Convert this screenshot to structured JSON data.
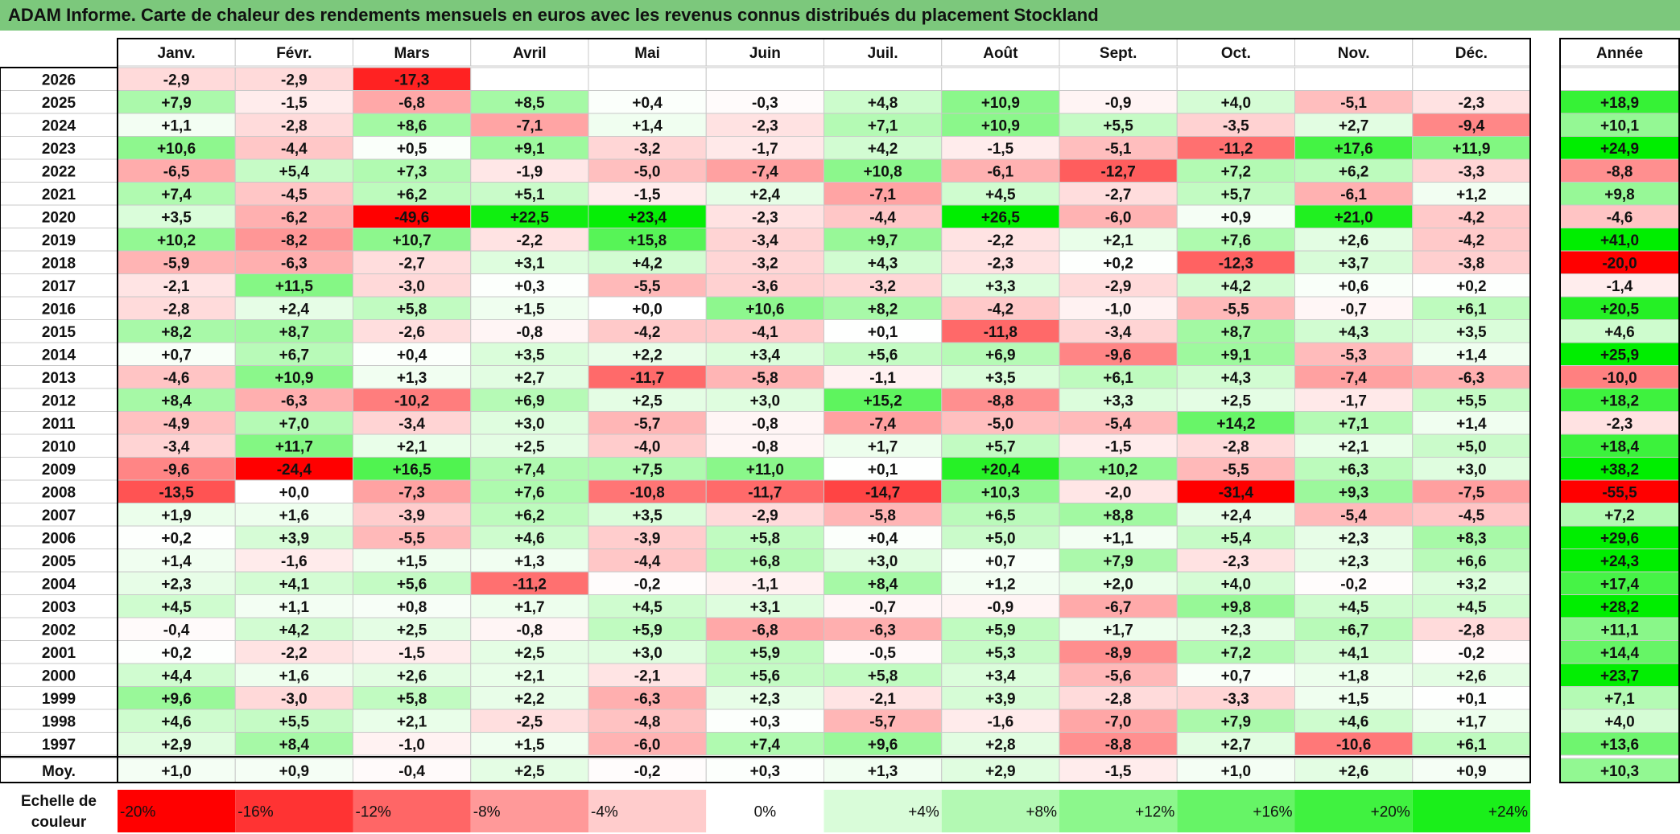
{
  "title": "ADAM Informe. Carte de chaleur des rendements mensuels en euros avec les revenus connus distribués du placement Stockland",
  "chart_data": {
    "type": "heatmap",
    "title": "ADAM Informe. Carte de chaleur des rendements mensuels en euros avec les revenus connus distribués du placement Stockland",
    "months": [
      "Janv.",
      "Févr.",
      "Mars",
      "Avril",
      "Mai",
      "Juin",
      "Juil.",
      "Août",
      "Sept.",
      "Oct.",
      "Nov.",
      "Déc."
    ],
    "annual_label": "Année",
    "rows": [
      {
        "year": "2026",
        "values": [
          "-2,9",
          "-2,9",
          "-17,3",
          "",
          "",
          "",
          "",
          "",
          "",
          "",
          "",
          ""
        ],
        "annual": ""
      },
      {
        "year": "2025",
        "values": [
          "+7,9",
          "-1,5",
          "-6,8",
          "+8,5",
          "+0,4",
          "-0,3",
          "+4,8",
          "+10,9",
          "-0,9",
          "+4,0",
          "-5,1",
          "-2,3"
        ],
        "annual": "+18,9"
      },
      {
        "year": "2024",
        "values": [
          "+1,1",
          "-2,8",
          "+8,6",
          "-7,1",
          "+1,4",
          "-2,3",
          "+7,1",
          "+10,9",
          "+5,5",
          "-3,5",
          "+2,7",
          "-9,4"
        ],
        "annual": "+10,1"
      },
      {
        "year": "2023",
        "values": [
          "+10,6",
          "-4,4",
          "+0,5",
          "+9,1",
          "-3,2",
          "-1,7",
          "+4,2",
          "-1,5",
          "-5,1",
          "-11,2",
          "+17,6",
          "+11,9"
        ],
        "annual": "+24,9"
      },
      {
        "year": "2022",
        "values": [
          "-6,5",
          "+5,4",
          "+7,3",
          "-1,9",
          "-5,0",
          "-7,4",
          "+10,8",
          "-6,1",
          "-12,7",
          "+7,2",
          "+6,2",
          "-3,3"
        ],
        "annual": "-8,8"
      },
      {
        "year": "2021",
        "values": [
          "+7,4",
          "-4,5",
          "+6,2",
          "+5,1",
          "-1,5",
          "+2,4",
          "-7,1",
          "+4,5",
          "-2,7",
          "+5,7",
          "-6,1",
          "+1,2"
        ],
        "annual": "+9,8"
      },
      {
        "year": "2020",
        "values": [
          "+3,5",
          "-6,2",
          "-49,6",
          "+22,5",
          "+23,4",
          "-2,3",
          "-4,4",
          "+26,5",
          "-6,0",
          "+0,9",
          "+21,0",
          "-4,2"
        ],
        "annual": "-4,6"
      },
      {
        "year": "2019",
        "values": [
          "+10,2",
          "-8,2",
          "+10,7",
          "-2,2",
          "+15,8",
          "-3,4",
          "+9,7",
          "-2,2",
          "+2,1",
          "+7,6",
          "+2,6",
          "-4,2"
        ],
        "annual": "+41,0"
      },
      {
        "year": "2018",
        "values": [
          "-5,9",
          "-6,3",
          "-2,7",
          "+3,1",
          "+4,2",
          "-3,2",
          "+4,3",
          "-2,3",
          "+0,2",
          "-12,3",
          "+3,7",
          "-3,8"
        ],
        "annual": "-20,0"
      },
      {
        "year": "2017",
        "values": [
          "-2,1",
          "+11,5",
          "-3,0",
          "+0,3",
          "-5,5",
          "-3,6",
          "-3,2",
          "+3,3",
          "-2,9",
          "+4,2",
          "+0,6",
          "+0,2"
        ],
        "annual": "-1,4"
      },
      {
        "year": "2016",
        "values": [
          "-2,8",
          "+2,4",
          "+5,8",
          "+1,5",
          "+0,0",
          "+10,6",
          "+8,2",
          "-4,2",
          "-1,0",
          "-5,5",
          "-0,7",
          "+6,1"
        ],
        "annual": "+20,5"
      },
      {
        "year": "2015",
        "values": [
          "+8,2",
          "+8,7",
          "-2,6",
          "-0,8",
          "-4,2",
          "-4,1",
          "+0,1",
          "-11,8",
          "-3,4",
          "+8,7",
          "+4,3",
          "+3,5"
        ],
        "annual": "+4,6"
      },
      {
        "year": "2014",
        "values": [
          "+0,7",
          "+6,7",
          "+0,4",
          "+3,5",
          "+2,2",
          "+3,4",
          "+5,6",
          "+6,9",
          "-9,6",
          "+9,1",
          "-5,3",
          "+1,4"
        ],
        "annual": "+25,9"
      },
      {
        "year": "2013",
        "values": [
          "-4,6",
          "+10,9",
          "+1,3",
          "+2,7",
          "-11,7",
          "-5,8",
          "-1,1",
          "+3,5",
          "+6,1",
          "+4,3",
          "-7,4",
          "-6,3"
        ],
        "annual": "-10,0"
      },
      {
        "year": "2012",
        "values": [
          "+8,4",
          "-6,3",
          "-10,2",
          "+6,9",
          "+2,5",
          "+3,0",
          "+15,2",
          "-8,8",
          "+3,3",
          "+2,5",
          "-1,7",
          "+5,5"
        ],
        "annual": "+18,2"
      },
      {
        "year": "2011",
        "values": [
          "-4,9",
          "+7,0",
          "-3,4",
          "+3,0",
          "-5,7",
          "-0,8",
          "-7,4",
          "-5,0",
          "-5,4",
          "+14,2",
          "+7,1",
          "+1,4"
        ],
        "annual": "-2,3"
      },
      {
        "year": "2010",
        "values": [
          "-3,4",
          "+11,7",
          "+2,1",
          "+2,5",
          "-4,0",
          "-0,8",
          "+1,7",
          "+5,7",
          "-1,5",
          "-2,8",
          "+2,1",
          "+5,0"
        ],
        "annual": "+18,4"
      },
      {
        "year": "2009",
        "values": [
          "-9,6",
          "-24,4",
          "+16,5",
          "+7,4",
          "+7,5",
          "+11,0",
          "+0,1",
          "+20,4",
          "+10,2",
          "-5,5",
          "+6,3",
          "+3,0"
        ],
        "annual": "+38,2"
      },
      {
        "year": "2008",
        "values": [
          "-13,5",
          "+0,0",
          "-7,3",
          "+7,6",
          "-10,8",
          "-11,7",
          "-14,7",
          "+10,3",
          "-2,0",
          "-31,4",
          "+9,3",
          "-7,5"
        ],
        "annual": "-55,5"
      },
      {
        "year": "2007",
        "values": [
          "+1,9",
          "+1,6",
          "-3,9",
          "+6,2",
          "+3,5",
          "-2,9",
          "-5,8",
          "+6,5",
          "+8,8",
          "+2,4",
          "-5,4",
          "-4,5"
        ],
        "annual": "+7,2"
      },
      {
        "year": "2006",
        "values": [
          "+0,2",
          "+3,9",
          "-5,5",
          "+4,6",
          "-3,9",
          "+5,8",
          "+0,4",
          "+5,0",
          "+1,1",
          "+5,4",
          "+2,3",
          "+8,3"
        ],
        "annual": "+29,6"
      },
      {
        "year": "2005",
        "values": [
          "+1,4",
          "-1,6",
          "+1,5",
          "+1,3",
          "-4,4",
          "+6,8",
          "+3,0",
          "+0,7",
          "+7,9",
          "-2,3",
          "+2,3",
          "+6,6"
        ],
        "annual": "+24,3"
      },
      {
        "year": "2004",
        "values": [
          "+2,3",
          "+4,1",
          "+5,6",
          "-11,2",
          "-0,2",
          "-1,1",
          "+8,4",
          "+1,2",
          "+2,0",
          "+4,0",
          "-0,2",
          "+3,2"
        ],
        "annual": "+17,4"
      },
      {
        "year": "2003",
        "values": [
          "+4,5",
          "+1,1",
          "+0,8",
          "+1,7",
          "+4,5",
          "+3,1",
          "-0,7",
          "-0,9",
          "-6,7",
          "+9,8",
          "+4,5",
          "+4,5"
        ],
        "annual": "+28,2"
      },
      {
        "year": "2002",
        "values": [
          "-0,4",
          "+4,2",
          "+2,5",
          "-0,8",
          "+5,9",
          "-6,8",
          "-6,3",
          "+5,9",
          "+1,7",
          "+2,3",
          "+6,7",
          "-2,8"
        ],
        "annual": "+11,1"
      },
      {
        "year": "2001",
        "values": [
          "+0,2",
          "-2,2",
          "-1,5",
          "+2,5",
          "+3,0",
          "+5,9",
          "-0,5",
          "+5,3",
          "-8,9",
          "+7,2",
          "+4,1",
          "-0,2"
        ],
        "annual": "+14,4"
      },
      {
        "year": "2000",
        "values": [
          "+4,4",
          "+1,6",
          "+2,6",
          "+2,1",
          "-2,1",
          "+5,6",
          "+5,8",
          "+3,4",
          "-5,6",
          "+0,7",
          "+1,8",
          "+2,6"
        ],
        "annual": "+23,7"
      },
      {
        "year": "1999",
        "values": [
          "+9,6",
          "-3,0",
          "+5,8",
          "+2,2",
          "-6,3",
          "+2,3",
          "-2,1",
          "+3,9",
          "-2,8",
          "-3,3",
          "+1,5",
          "+0,1"
        ],
        "annual": "+7,1"
      },
      {
        "year": "1998",
        "values": [
          "+4,6",
          "+5,5",
          "+2,1",
          "-2,5",
          "-4,8",
          "+0,3",
          "-5,7",
          "-1,6",
          "-7,0",
          "+7,9",
          "+4,6",
          "+1,7"
        ],
        "annual": "+4,0"
      },
      {
        "year": "1997",
        "values": [
          "+2,9",
          "+8,4",
          "-1,0",
          "+1,5",
          "-6,0",
          "+7,4",
          "+9,6",
          "+2,8",
          "-8,8",
          "+2,7",
          "-10,6",
          "+6,1"
        ],
        "annual": "+13,6"
      }
    ],
    "average": {
      "label": "Moy.",
      "values": [
        "+1,0",
        "+0,9",
        "-0,4",
        "+2,5",
        "-0,2",
        "+0,3",
        "+1,3",
        "+2,9",
        "-1,5",
        "+1,0",
        "+2,6",
        "+0,9"
      ],
      "annual": "+10,3"
    },
    "scale": {
      "label_line1": "Echelle de",
      "label_line2": "couleur",
      "steps": [
        {
          "label": "-20%",
          "value": -20,
          "color": "#ff0000"
        },
        {
          "label": "-16%",
          "value": -16,
          "color": "#ff3333"
        },
        {
          "label": "-12%",
          "value": -12,
          "color": "#ff6666"
        },
        {
          "label": "-8%",
          "value": -8,
          "color": "#ff9999"
        },
        {
          "label": "-4%",
          "value": -4,
          "color": "#ffcccc"
        },
        {
          "label": "0%",
          "value": 0,
          "color": "#ffffff"
        },
        {
          "label": "+4%",
          "value": 4,
          "color": "#d9fcd9"
        },
        {
          "label": "+8%",
          "value": 8,
          "color": "#b3f9b3"
        },
        {
          "label": "+12%",
          "value": 12,
          "color": "#8cf78c"
        },
        {
          "label": "+16%",
          "value": 16,
          "color": "#66f466"
        },
        {
          "label": "+20%",
          "value": 20,
          "color": "#40f240"
        },
        {
          "label": "+24%",
          "value": 24,
          "color": "#1aef1a"
        }
      ]
    },
    "colors": {
      "title_bg": "#7cc87c",
      "negative_max": "#ff0000",
      "neutral": "#ffffff",
      "positive_max": "#00ee00"
    }
  }
}
